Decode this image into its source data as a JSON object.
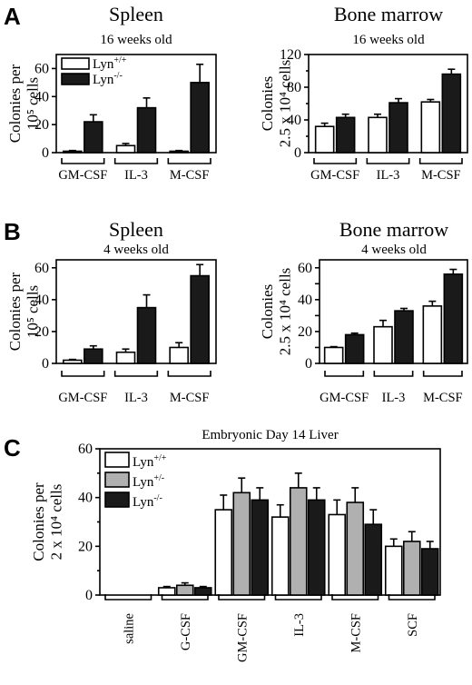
{
  "panel_labels": [
    "A",
    "B",
    "C"
  ],
  "series_colors": {
    "Lyn+/+": "#ffffff",
    "Lyn+/-": "#b0b0b0",
    "Lyn-/-": "#1a1a1a"
  },
  "chart_data": [
    {
      "id": "a-spleen",
      "panel": "A",
      "type": "bar",
      "title": "Spleen",
      "subtitle": "16 weeks old",
      "ylabel_lines": [
        "Colonies per",
        "10⁵ cells"
      ],
      "ylim": [
        0,
        70
      ],
      "yticks": [
        0,
        20,
        40,
        60
      ],
      "groups": [
        "GM-CSF",
        "IL-3",
        "M-CSF"
      ],
      "series": [
        {
          "name": "Lyn+/+",
          "values": [
            1,
            5,
            1
          ],
          "errors": [
            0.5,
            1.5,
            0.5
          ]
        },
        {
          "name": "Lyn-/-",
          "values": [
            22,
            32,
            50
          ],
          "errors": [
            5,
            7,
            13
          ]
        }
      ],
      "legend": {
        "entries": [
          {
            "series": "Lyn+/+",
            "base": "Lyn",
            "sup": "+/+"
          },
          {
            "series": "Lyn-/-",
            "base": "Lyn",
            "sup": "-/-"
          }
        ],
        "position": "top-left"
      }
    },
    {
      "id": "a-bm",
      "panel": "A",
      "type": "bar",
      "title": "Bone marrow",
      "subtitle": "16 weeks  old",
      "ylabel_lines": [
        "Colonies",
        "2.5 x 10⁴ cells"
      ],
      "ylim": [
        0,
        120
      ],
      "yticks": [
        0,
        40,
        80,
        120
      ],
      "yticks_minor": [
        20,
        60,
        100
      ],
      "groups": [
        "GM-CSF",
        "IL-3",
        "M-CSF"
      ],
      "series": [
        {
          "name": "Lyn+/+",
          "values": [
            32,
            43,
            62
          ],
          "errors": [
            4,
            4,
            3
          ]
        },
        {
          "name": "Lyn-/-",
          "values": [
            43,
            61,
            96
          ],
          "errors": [
            4,
            5,
            6
          ]
        }
      ]
    },
    {
      "id": "b-spleen",
      "panel": "B",
      "type": "bar",
      "title": "Spleen",
      "subtitle": "4 weeks old",
      "ylabel_lines": [
        "Colonies per",
        "10⁵ cells"
      ],
      "ylim": [
        0,
        65
      ],
      "yticks": [
        0,
        20,
        40,
        60
      ],
      "groups": [
        "GM-CSF",
        "IL-3",
        "M-CSF"
      ],
      "series": [
        {
          "name": "Lyn+/+",
          "values": [
            2,
            7,
            10
          ],
          "errors": [
            0.5,
            2,
            3
          ]
        },
        {
          "name": "Lyn-/-",
          "values": [
            9,
            35,
            55
          ],
          "errors": [
            2,
            8,
            7
          ]
        }
      ]
    },
    {
      "id": "b-bm",
      "panel": "B",
      "type": "bar",
      "title": "Bone marrow",
      "subtitle": "4 weeks old",
      "ylabel_lines": [
        "Colonies",
        "2.5 x 10⁴ cells"
      ],
      "ylim": [
        0,
        65
      ],
      "yticks": [
        0,
        10,
        20,
        30,
        40,
        50,
        60
      ],
      "ytick_labels_shown": [
        20,
        40,
        60
      ],
      "groups": [
        "GM-CSF",
        "IL-3",
        "M-CSF"
      ],
      "series": [
        {
          "name": "Lyn+/+",
          "values": [
            10,
            23,
            36
          ],
          "errors": [
            0.5,
            4,
            3
          ]
        },
        {
          "name": "Lyn-/-",
          "values": [
            18,
            33,
            56
          ],
          "errors": [
            1,
            1.5,
            3
          ]
        }
      ]
    },
    {
      "id": "c-liver",
      "panel": "C",
      "type": "bar",
      "title": "",
      "subtitle": "Embryonic Day 14  Liver",
      "ylabel_lines": [
        "Colonies per",
        "2 x 10⁴ cells"
      ],
      "ylim": [
        0,
        60
      ],
      "yticks": [
        0,
        20,
        40,
        60
      ],
      "yticks_minor": [
        10,
        30,
        50
      ],
      "groups": [
        "saline",
        "G-CSF",
        "GM-CSF",
        "IL-3",
        "M-CSF",
        "SCF"
      ],
      "series": [
        {
          "name": "Lyn+/+",
          "values": [
            0,
            3,
            35,
            32,
            33,
            20
          ],
          "errors": [
            0,
            0.5,
            6,
            5,
            6,
            3
          ]
        },
        {
          "name": "Lyn+/-",
          "values": [
            0,
            4,
            42,
            44,
            38,
            22
          ],
          "errors": [
            0,
            1,
            6,
            6,
            6,
            4
          ]
        },
        {
          "name": "Lyn-/-",
          "values": [
            0,
            3,
            39,
            39,
            29,
            19
          ],
          "errors": [
            0,
            0.5,
            5,
            5,
            6,
            3
          ]
        }
      ],
      "legend": {
        "entries": [
          {
            "series": "Lyn+/+",
            "base": "Lyn",
            "sup": "+/+"
          },
          {
            "series": "Lyn+/-",
            "base": "Lyn",
            "sup": "+/-"
          },
          {
            "series": "Lyn-/-",
            "base": "Lyn",
            "sup": "-/-"
          }
        ],
        "position": "top-left"
      }
    }
  ]
}
